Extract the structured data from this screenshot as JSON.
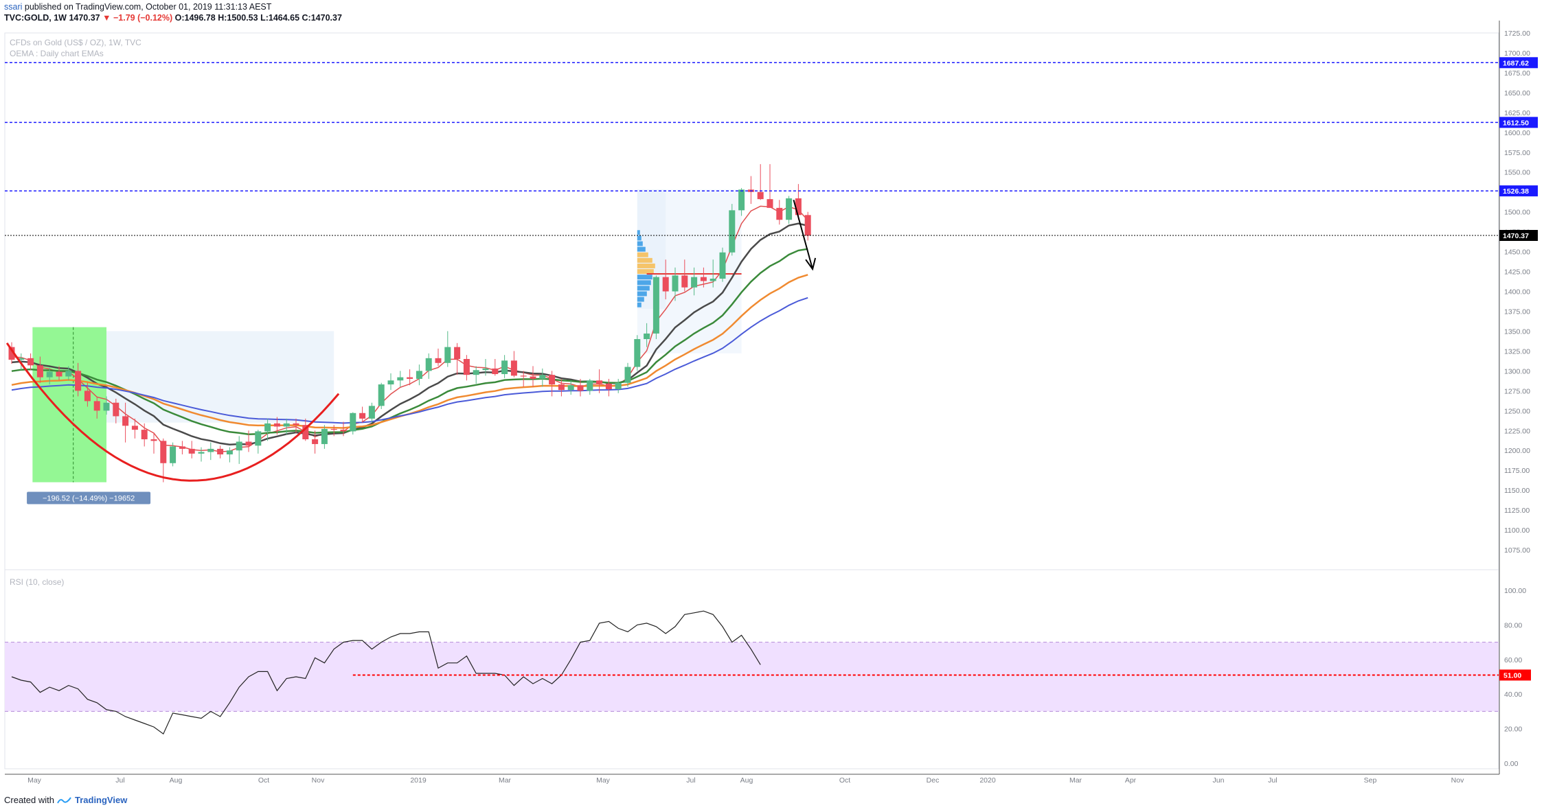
{
  "header": {
    "publisher": "ssari",
    "published_on": "published on TradingView.com, October 01, 2019 11:31:13 AEST",
    "symbol": "TVC:GOLD, 1W",
    "last": "1470.37",
    "change": "−1.79 (−0.12%)",
    "ohlc": {
      "o": "O:1496.78",
      "h": "H:1500.53",
      "l": "L:1464.65",
      "c": "C:1470.37"
    }
  },
  "chart_data": {
    "type": "candlestick",
    "title": "CFDs on Gold (US$ / OZ), 1W, TVC",
    "indicator": "OEMA : Daily chart EMAs",
    "ylim": [
      1050,
      1725
    ],
    "y_ticks": [
      "1075.00",
      "1100.00",
      "1125.00",
      "1150.00",
      "1175.00",
      "1200.00",
      "1225.00",
      "1250.00",
      "1275.00",
      "1300.00",
      "1325.00",
      "1350.00",
      "1375.00",
      "1400.00",
      "1425.00",
      "1450.00",
      "1475.00",
      "1500.00",
      "1525.00",
      "1550.00",
      "1575.00",
      "1600.00",
      "1625.00",
      "1650.00",
      "1675.00",
      "1700.00",
      "1725.00"
    ],
    "x_ticks": [
      "May",
      "Jul",
      "Aug",
      "Oct",
      "Nov",
      "2019",
      "Mar",
      "May",
      "Jul",
      "Aug",
      "Oct",
      "Dec",
      "2020",
      "Mar",
      "Apr",
      "Jun",
      "Jul",
      "Sep",
      "Nov"
    ],
    "horizontal_levels": [
      {
        "value": 1687.62,
        "label": "1687.62",
        "color": "#1a1aff"
      },
      {
        "value": 1612.5,
        "label": "1612.50",
        "color": "#1a1aff"
      },
      {
        "value": 1526.38,
        "label": "1526.38",
        "color": "#1a1aff"
      },
      {
        "value": 1470.37,
        "label": "1470.37",
        "color": "#000000"
      }
    ],
    "candles": [
      [
        1330,
        1336,
        1309,
        1314
      ],
      [
        1314,
        1322,
        1301,
        1316
      ],
      [
        1316,
        1322,
        1301,
        1307
      ],
      [
        1307,
        1318,
        1285,
        1292
      ],
      [
        1292,
        1304,
        1283,
        1299
      ],
      [
        1299,
        1306,
        1288,
        1293
      ],
      [
        1293,
        1306,
        1288,
        1300
      ],
      [
        1300,
        1310,
        1268,
        1275
      ],
      [
        1275,
        1285,
        1255,
        1262
      ],
      [
        1262,
        1268,
        1240,
        1250
      ],
      [
        1250,
        1268,
        1245,
        1260
      ],
      [
        1260,
        1265,
        1234,
        1243
      ],
      [
        1243,
        1260,
        1210,
        1231
      ],
      [
        1231,
        1240,
        1215,
        1226
      ],
      [
        1226,
        1234,
        1205,
        1214
      ],
      [
        1214,
        1222,
        1196,
        1212
      ],
      [
        1212,
        1215,
        1160,
        1184
      ],
      [
        1184,
        1210,
        1180,
        1205
      ],
      [
        1205,
        1212,
        1195,
        1202
      ],
      [
        1202,
        1212,
        1190,
        1196
      ],
      [
        1196,
        1204,
        1186,
        1198
      ],
      [
        1198,
        1210,
        1188,
        1202
      ],
      [
        1202,
        1206,
        1190,
        1195
      ],
      [
        1195,
        1204,
        1185,
        1200
      ],
      [
        1200,
        1218,
        1183,
        1211
      ],
      [
        1211,
        1225,
        1198,
        1206
      ],
      [
        1206,
        1226,
        1196,
        1224
      ],
      [
        1224,
        1240,
        1212,
        1234
      ],
      [
        1234,
        1242,
        1220,
        1230
      ],
      [
        1230,
        1240,
        1220,
        1234
      ],
      [
        1234,
        1240,
        1222,
        1232
      ],
      [
        1232,
        1240,
        1212,
        1214
      ],
      [
        1214,
        1225,
        1196,
        1208
      ],
      [
        1208,
        1232,
        1202,
        1227
      ],
      [
        1227,
        1232,
        1218,
        1226
      ],
      [
        1226,
        1236,
        1218,
        1224
      ],
      [
        1224,
        1248,
        1220,
        1247
      ],
      [
        1247,
        1255,
        1235,
        1240
      ],
      [
        1240,
        1260,
        1235,
        1256
      ],
      [
        1256,
        1285,
        1252,
        1283
      ],
      [
        1283,
        1297,
        1276,
        1288
      ],
      [
        1288,
        1300,
        1280,
        1292
      ],
      [
        1292,
        1302,
        1282,
        1290
      ],
      [
        1290,
        1308,
        1282,
        1300
      ],
      [
        1300,
        1322,
        1290,
        1316
      ],
      [
        1316,
        1328,
        1306,
        1310
      ],
      [
        1310,
        1350,
        1305,
        1330
      ],
      [
        1330,
        1335,
        1295,
        1315
      ],
      [
        1315,
        1320,
        1288,
        1295
      ],
      [
        1295,
        1306,
        1284,
        1301
      ],
      [
        1301,
        1315,
        1294,
        1303
      ],
      [
        1303,
        1315,
        1294,
        1296
      ],
      [
        1296,
        1320,
        1291,
        1313
      ],
      [
        1313,
        1325,
        1292,
        1294
      ],
      [
        1294,
        1300,
        1280,
        1293
      ],
      [
        1293,
        1306,
        1280,
        1290
      ],
      [
        1290,
        1303,
        1280,
        1295
      ],
      [
        1295,
        1300,
        1268,
        1283
      ],
      [
        1283,
        1290,
        1268,
        1276
      ],
      [
        1276,
        1288,
        1270,
        1282
      ],
      [
        1282,
        1290,
        1268,
        1275
      ],
      [
        1275,
        1290,
        1270,
        1288
      ],
      [
        1288,
        1302,
        1272,
        1284
      ],
      [
        1284,
        1290,
        1268,
        1277
      ],
      [
        1277,
        1290,
        1272,
        1285
      ],
      [
        1285,
        1310,
        1280,
        1305
      ],
      [
        1305,
        1345,
        1300,
        1340
      ],
      [
        1340,
        1360,
        1330,
        1347
      ],
      [
        1347,
        1420,
        1340,
        1418
      ],
      [
        1418,
        1440,
        1390,
        1400
      ],
      [
        1400,
        1430,
        1388,
        1420
      ],
      [
        1420,
        1440,
        1400,
        1405
      ],
      [
        1405,
        1430,
        1395,
        1418
      ],
      [
        1418,
        1430,
        1405,
        1413
      ],
      [
        1413,
        1440,
        1405,
        1416
      ],
      [
        1416,
        1455,
        1412,
        1449
      ],
      [
        1449,
        1510,
        1445,
        1502
      ],
      [
        1502,
        1530,
        1495,
        1528
      ],
      [
        1528,
        1545,
        1510,
        1525
      ],
      [
        1525,
        1560,
        1515,
        1516
      ],
      [
        1516,
        1560,
        1505,
        1505
      ],
      [
        1505,
        1515,
        1484,
        1490
      ],
      [
        1490,
        1520,
        1485,
        1517
      ],
      [
        1517,
        1535,
        1490,
        1496
      ],
      [
        1496,
        1500,
        1464,
        1470
      ]
    ],
    "measure_label": "−196.52 (−14.49%) −19652",
    "rsi": {
      "title": "RSI (10, close)",
      "ylim": [
        0,
        100
      ],
      "y_ticks": [
        "0.00",
        "20.00",
        "40.00",
        "60.00",
        "80.00",
        "100.00"
      ],
      "band": [
        30,
        70
      ],
      "level": {
        "value": 51,
        "label": "51.00",
        "color": "#ff0000"
      },
      "values": [
        50,
        48,
        47,
        41,
        44,
        42,
        45,
        43,
        37,
        35,
        31,
        30,
        27,
        25,
        23,
        21,
        17,
        29,
        28,
        27,
        26,
        30,
        27,
        35,
        44,
        50,
        53,
        53,
        42,
        49,
        50,
        49,
        61,
        58,
        66,
        70,
        71,
        71,
        66,
        70,
        73,
        75,
        75,
        76,
        76,
        55,
        58,
        58,
        62,
        52,
        52,
        52,
        51,
        45,
        50,
        46,
        49,
        46,
        51,
        60,
        70,
        71,
        81,
        82,
        78,
        76,
        80,
        81,
        79,
        75,
        79,
        86,
        87,
        88,
        86,
        79,
        70,
        74,
        66,
        57
      ]
    }
  },
  "footer": {
    "created_with": "Created with",
    "brand": "TradingView"
  }
}
